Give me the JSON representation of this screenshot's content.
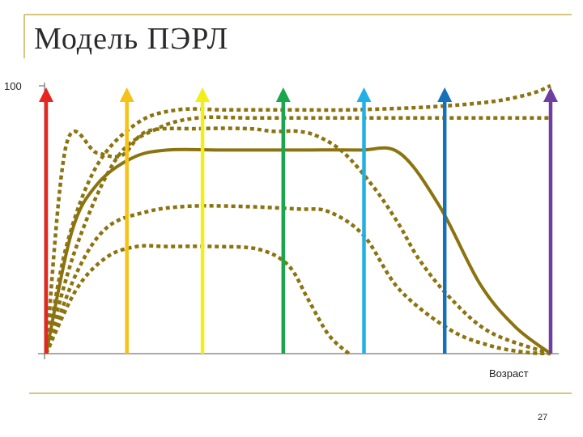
{
  "slide": {
    "title": "Модель ПЭРЛ",
    "page_number": "27"
  },
  "colors": {
    "curve": "#8B7410",
    "frame": "#C9B352",
    "axis": "#555555"
  },
  "chart_data": {
    "type": "line",
    "xlabel": "Возраст",
    "ylabel": "",
    "y_tick_labels": [
      "100"
    ],
    "xlim": [
      0,
      100
    ],
    "ylim": [
      0,
      100
    ],
    "grid": false,
    "series": [
      {
        "style": "solid",
        "x": [
          0,
          5,
          10,
          17,
          24,
          35,
          50,
          62,
          70,
          78,
          86,
          93,
          100
        ],
        "y": [
          0,
          45,
          63,
          73,
          76,
          76,
          76,
          76,
          75,
          55,
          26,
          10,
          0
        ]
      },
      {
        "style": "dotted",
        "x": [
          0,
          4,
          10,
          18,
          26,
          36,
          50,
          60,
          75,
          88,
          96,
          100
        ],
        "y": [
          0,
          40,
          70,
          86,
          91,
          91,
          91,
          91,
          92,
          94,
          97,
          100
        ]
      },
      {
        "style": "dotted",
        "x": [
          0,
          6,
          14,
          22,
          30,
          40,
          52,
          62,
          70,
          77,
          85,
          92,
          100
        ],
        "y": [
          0,
          40,
          73,
          84,
          88,
          88,
          88,
          88,
          88,
          88,
          88,
          88,
          88
        ]
      },
      {
        "style": "dotted",
        "x": [
          0,
          6,
          12,
          20,
          28,
          38,
          50,
          56,
          63,
          70,
          80,
          88,
          95,
          100
        ],
        "y": [
          0,
          30,
          47,
          53,
          55,
          55,
          54,
          53,
          44,
          24,
          9,
          3,
          0.5,
          0
        ]
      },
      {
        "style": "dotted",
        "x": [
          0,
          4,
          10,
          15,
          20,
          30,
          40,
          45,
          50,
          54,
          59,
          65,
          70,
          74,
          80,
          88,
          100
        ],
        "y": [
          0,
          78,
          75,
          74,
          83,
          84,
          84,
          83,
          83,
          81,
          75,
          62,
          48,
          35,
          21,
          8,
          0
        ]
      },
      {
        "style": "dotted",
        "x": [
          0,
          6,
          12,
          18,
          24,
          33,
          42,
          48,
          52,
          56,
          60
        ],
        "y": [
          0,
          24,
          36,
          40,
          40,
          40,
          39,
          33,
          20,
          7,
          0
        ]
      }
    ],
    "arrows": [
      {
        "x": 0,
        "color": "#E8251E"
      },
      {
        "x": 16,
        "color": "#F5C21A"
      },
      {
        "x": 31,
        "color": "#F2EE1A"
      },
      {
        "x": 47,
        "color": "#1AA64A"
      },
      {
        "x": 63,
        "color": "#21B0E6"
      },
      {
        "x": 79,
        "color": "#1571B8"
      },
      {
        "x": 100,
        "color": "#6E3EA0"
      }
    ]
  }
}
